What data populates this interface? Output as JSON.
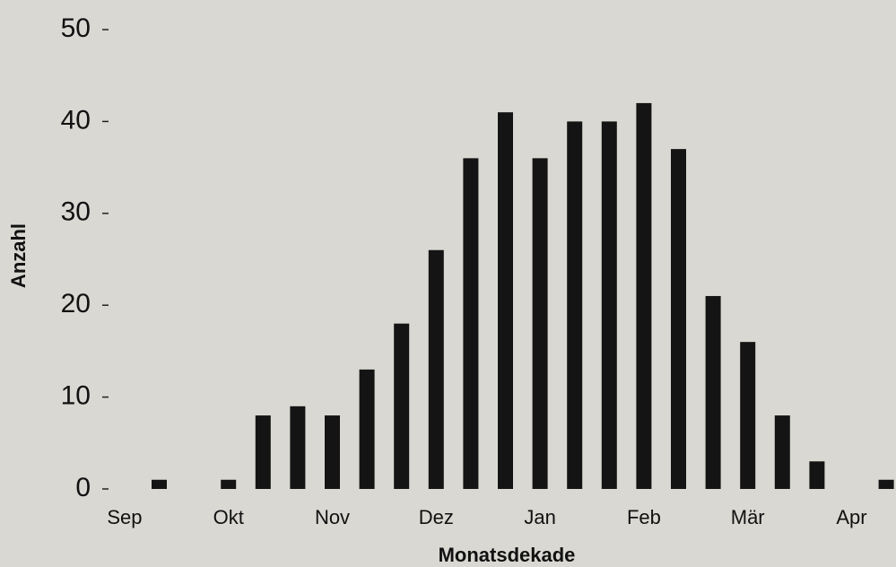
{
  "chart_data": {
    "type": "bar",
    "x_label": "Monatsdekade",
    "y_label": "Anzahl",
    "categories": [
      null,
      "Sep",
      null,
      null,
      "Okt",
      null,
      null,
      "Nov",
      null,
      null,
      "Dez",
      null,
      null,
      "Jan",
      null,
      null,
      "Feb",
      null,
      null,
      "Mär",
      null,
      null,
      "Apr",
      null
    ],
    "values": [
      0,
      0,
      1,
      0,
      1,
      8,
      9,
      8,
      13,
      18,
      26,
      36,
      41,
      36,
      40,
      40,
      42,
      37,
      21,
      16,
      8,
      3,
      0,
      1
    ],
    "color": "#141414",
    "ylim": [
      0,
      50
    ],
    "yticks": [
      0,
      10,
      20,
      30,
      40,
      50
    ],
    "grid": false
  }
}
